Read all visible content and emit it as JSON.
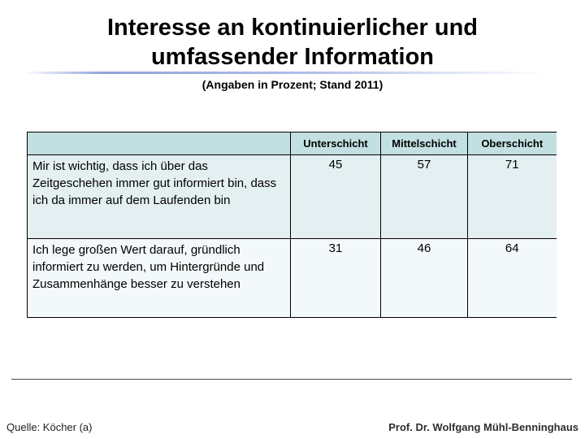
{
  "slide": {
    "title_line1": "Interesse an kontinuierlicher und",
    "title_line2": "umfassender Information",
    "subtitle": "(Angaben in Prozent; Stand 2011)"
  },
  "table": {
    "columns": [
      "",
      "Unterschicht",
      "Mittelschicht",
      "Oberschicht"
    ],
    "rows": [
      {
        "label": "Mir ist wichtig, dass ich über das Zeitgeschehen immer gut informiert bin, dass ich da immer auf dem Laufenden bin",
        "values": [
          45,
          57,
          71
        ]
      },
      {
        "label": "Ich lege großen Wert darauf, gründlich informiert zu werden, um Hintergründe und Zusammenhänge besser zu verstehen",
        "values": [
          31,
          46,
          64
        ]
      }
    ]
  },
  "footer": {
    "source": "Quelle: Köcher (a)",
    "author": "Prof. Dr. Wolfgang Mühl-Benninghaus"
  },
  "colors": {
    "header_bg": "#c2e0e2",
    "row1_bg": "#e4eff2",
    "row2_bg": "#f3f8fa",
    "accent_line": "#8fa3d8"
  },
  "chart_data": {
    "type": "table",
    "title": "Interesse an kontinuierlicher und umfassender Information (Angaben in Prozent; Stand 2011)",
    "categories": [
      "Unterschicht",
      "Mittelschicht",
      "Oberschicht"
    ],
    "series": [
      {
        "name": "Mir ist wichtig, dass ich über das Zeitgeschehen immer gut informiert bin, dass ich da immer auf dem Laufenden bin",
        "values": [
          45,
          57,
          71
        ]
      },
      {
        "name": "Ich lege großen Wert darauf, gründlich informiert zu werden, um Hintergründe und Zusammenhänge besser zu verstehen",
        "values": [
          31,
          46,
          64
        ]
      }
    ]
  }
}
